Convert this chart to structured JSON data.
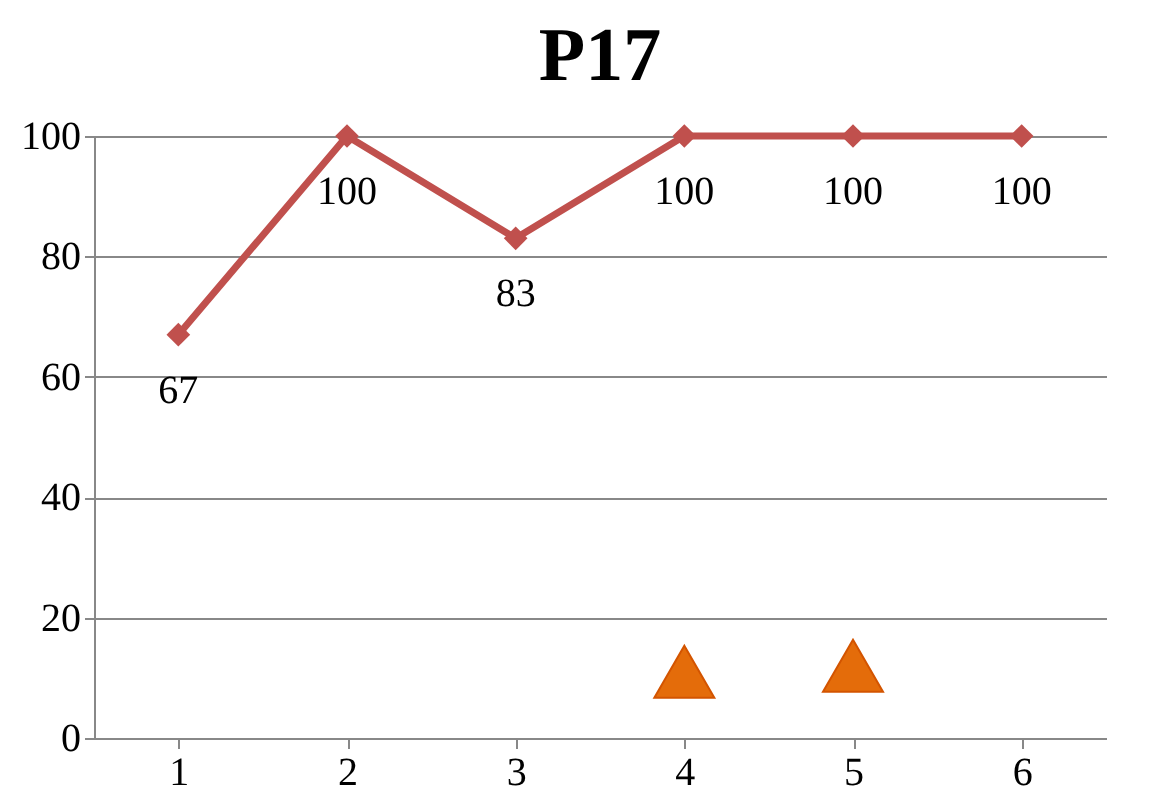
{
  "chart_data": {
    "type": "line",
    "title": "P17",
    "categories": [
      "1",
      "2",
      "3",
      "4",
      "5",
      "6"
    ],
    "series": [
      {
        "color": "#c0504d",
        "values": [
          67,
          100,
          83,
          100,
          100,
          100
        ],
        "marker": "diamond",
        "value_labels": [
          "67",
          "100",
          "83",
          "100",
          "100",
          "100"
        ]
      },
      {
        "type": "scatter",
        "color": "#e46c0a",
        "x": [
          "4",
          "5"
        ],
        "values": [
          11,
          12
        ],
        "marker": "triangle"
      }
    ],
    "ylim": [
      0,
      100
    ],
    "yticks": [
      0,
      20,
      40,
      60,
      80,
      100
    ],
    "grid": "y"
  }
}
